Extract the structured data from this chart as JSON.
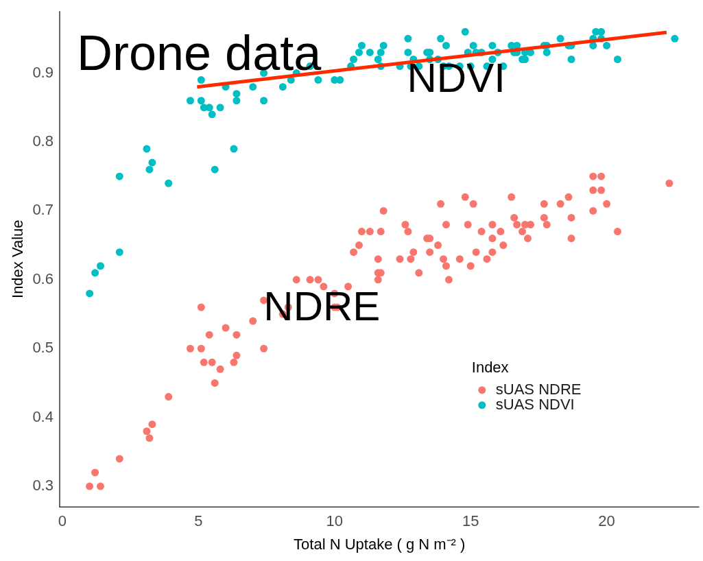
{
  "chart_data": {
    "type": "scatter",
    "title": "Drone data",
    "xlabel": "Total N Uptake ( g N m⁻² )",
    "ylabel": "Index Value",
    "legend_title": "Index",
    "legend": "right",
    "grid": false,
    "xlim": [
      -0.1,
      23.4
    ],
    "xticks": [
      0,
      5,
      10,
      15,
      20
    ],
    "ylim": [
      0.27,
      0.99
    ],
    "yticks": [
      0.3,
      0.4,
      0.5,
      0.6,
      0.7,
      0.8,
      0.9
    ],
    "annotations": [
      "NDVI",
      "NDRE"
    ],
    "series": [
      {
        "name": "sUAS NDRE",
        "color": "#f8766d",
        "marker": "circle",
        "x": [
          1.0,
          1.2,
          1.4,
          2.1,
          3.1,
          3.2,
          3.3,
          3.9,
          4.7,
          5.1,
          5.1,
          5.2,
          5.4,
          5.5,
          5.6,
          5.8,
          6.0,
          6.3,
          6.4,
          6.4,
          7.0,
          7.4,
          7.4,
          8.1,
          8.3,
          8.6,
          9.1,
          9.4,
          9.6,
          10.0,
          10.0,
          10.1,
          10.5,
          10.7,
          10.9,
          11.0,
          11.3,
          11.6,
          11.6,
          11.6,
          11.7,
          11.7,
          11.8,
          12.4,
          12.6,
          12.7,
          12.8,
          12.9,
          13.1,
          13.4,
          13.5,
          13.5,
          13.8,
          13.9,
          14.0,
          14.1,
          14.1,
          14.2,
          14.6,
          14.8,
          14.9,
          15.0,
          15.1,
          15.2,
          15.4,
          15.6,
          15.8,
          15.8,
          15.8,
          16.1,
          16.2,
          16.5,
          16.6,
          16.7,
          16.9,
          17.0,
          17.1,
          17.2,
          17.7,
          17.7,
          17.8,
          18.3,
          18.6,
          18.7,
          18.7,
          19.5,
          19.5,
          19.5,
          19.8,
          19.8,
          20.0,
          20.4,
          22.3
        ],
        "values": [
          0.3,
          0.32,
          0.3,
          0.34,
          0.38,
          0.37,
          0.39,
          0.43,
          0.5,
          0.5,
          0.56,
          0.48,
          0.52,
          0.48,
          0.45,
          0.47,
          0.53,
          0.48,
          0.49,
          0.52,
          0.54,
          0.5,
          0.57,
          0.55,
          0.56,
          0.6,
          0.6,
          0.6,
          0.59,
          0.58,
          0.56,
          0.56,
          0.59,
          0.64,
          0.65,
          0.67,
          0.67,
          0.63,
          0.6,
          0.61,
          0.67,
          0.61,
          0.7,
          0.63,
          0.68,
          0.67,
          0.63,
          0.64,
          0.61,
          0.66,
          0.66,
          0.64,
          0.65,
          0.71,
          0.63,
          0.68,
          0.62,
          0.6,
          0.63,
          0.72,
          0.68,
          0.62,
          0.71,
          0.64,
          0.67,
          0.63,
          0.64,
          0.66,
          0.68,
          0.67,
          0.65,
          0.72,
          0.69,
          0.68,
          0.67,
          0.68,
          0.66,
          0.68,
          0.69,
          0.71,
          0.68,
          0.71,
          0.72,
          0.69,
          0.66,
          0.73,
          0.7,
          0.75,
          0.73,
          0.75,
          0.71,
          0.67,
          0.74
        ]
      },
      {
        "name": "sUAS NDVI",
        "color": "#00bfc4",
        "marker": "circle",
        "x": [
          1.0,
          1.2,
          1.4,
          2.1,
          2.1,
          3.1,
          3.2,
          3.3,
          3.9,
          4.7,
          5.1,
          5.1,
          5.2,
          5.4,
          5.5,
          5.6,
          5.8,
          6.0,
          6.3,
          6.4,
          6.4,
          7.0,
          7.4,
          7.4,
          8.1,
          8.4,
          8.6,
          9.1,
          9.4,
          10.0,
          10.2,
          10.6,
          10.7,
          10.9,
          11.0,
          11.3,
          11.6,
          11.7,
          11.7,
          11.8,
          12.4,
          12.7,
          12.7,
          12.8,
          12.9,
          13.1,
          13.4,
          13.5,
          13.5,
          13.8,
          13.9,
          14.0,
          14.1,
          14.2,
          14.6,
          14.8,
          14.9,
          15.0,
          15.1,
          15.2,
          15.4,
          15.6,
          15.8,
          15.8,
          16.0,
          16.2,
          16.5,
          16.6,
          16.7,
          16.7,
          16.9,
          17.0,
          17.0,
          17.2,
          17.7,
          17.8,
          17.8,
          18.3,
          18.6,
          18.7,
          18.7,
          19.5,
          19.5,
          19.6,
          19.8,
          19.8,
          20.0,
          20.4,
          22.5
        ],
        "values": [
          0.58,
          0.61,
          0.62,
          0.64,
          0.75,
          0.79,
          0.76,
          0.77,
          0.74,
          0.86,
          0.89,
          0.86,
          0.85,
          0.85,
          0.84,
          0.76,
          0.85,
          0.88,
          0.79,
          0.87,
          0.86,
          0.88,
          0.86,
          0.9,
          0.88,
          0.89,
          0.9,
          0.91,
          0.89,
          0.89,
          0.89,
          0.91,
          0.92,
          0.93,
          0.94,
          0.93,
          0.92,
          0.93,
          0.91,
          0.94,
          0.91,
          0.95,
          0.93,
          0.91,
          0.92,
          0.91,
          0.93,
          0.93,
          0.92,
          0.92,
          0.95,
          0.91,
          0.94,
          0.91,
          0.91,
          0.96,
          0.93,
          0.91,
          0.94,
          0.93,
          0.93,
          0.91,
          0.92,
          0.94,
          0.93,
          0.91,
          0.94,
          0.93,
          0.94,
          0.93,
          0.92,
          0.92,
          0.93,
          0.93,
          0.94,
          0.94,
          0.93,
          0.95,
          0.94,
          0.94,
          0.92,
          0.95,
          0.94,
          0.96,
          0.96,
          0.95,
          0.94,
          0.92,
          0.95
        ]
      },
      {
        "type": "line",
        "color": "#ff2a00",
        "line_style": "solid",
        "marker": "none",
        "x": [
          4.95,
          22.2
        ],
        "values": [
          0.88,
          0.959
        ]
      }
    ]
  }
}
